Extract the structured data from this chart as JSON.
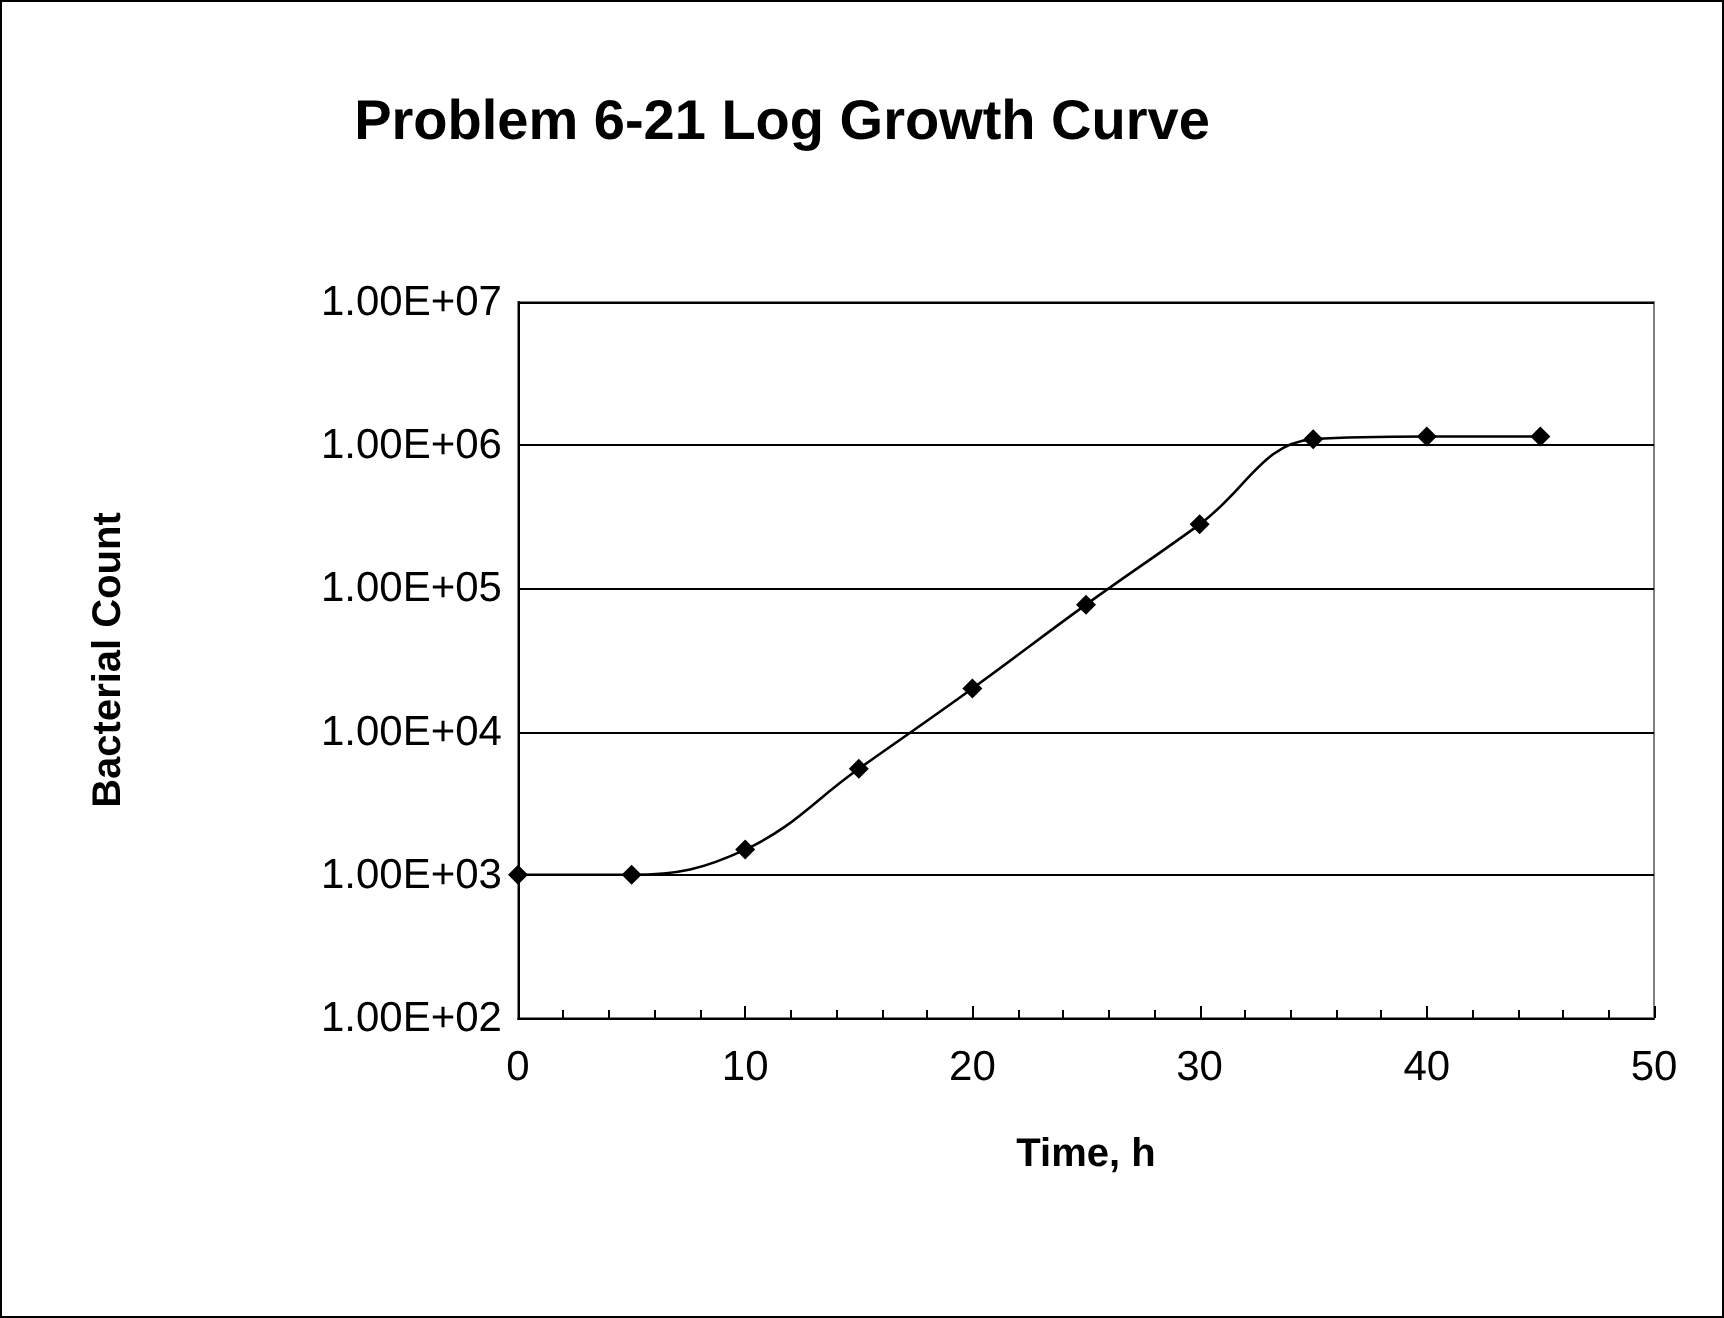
{
  "chart_data": {
    "type": "line",
    "title": "Problem 6-21 Log Growth Curve",
    "xlabel": "Time, h",
    "ylabel": "Bacterial Count",
    "x": [
      0,
      5,
      10,
      15,
      20,
      25,
      30,
      35,
      40,
      45
    ],
    "series": [
      {
        "color": "#000000",
        "values": [
          1000,
          1000,
          1500,
          5500,
          20000,
          77000,
          280000,
          1100000,
          1150000,
          1150000
        ]
      }
    ],
    "xlim": [
      0,
      50
    ],
    "xticks": [
      0,
      10,
      20,
      30,
      40,
      50
    ],
    "ylim": [
      100,
      10000000
    ],
    "yticks": [
      {
        "value": 100,
        "label": "1.00E+02"
      },
      {
        "value": 1000,
        "label": "1.00E+03"
      },
      {
        "value": 10000,
        "label": "1.00E+04"
      },
      {
        "value": 100000,
        "label": "1.00E+05"
      },
      {
        "value": 1000000,
        "label": "1.00E+06"
      },
      {
        "value": 10000000,
        "label": "1.00E+07"
      }
    ],
    "log": true,
    "grid": "y",
    "marker": "diamond",
    "line_style": "solid"
  }
}
